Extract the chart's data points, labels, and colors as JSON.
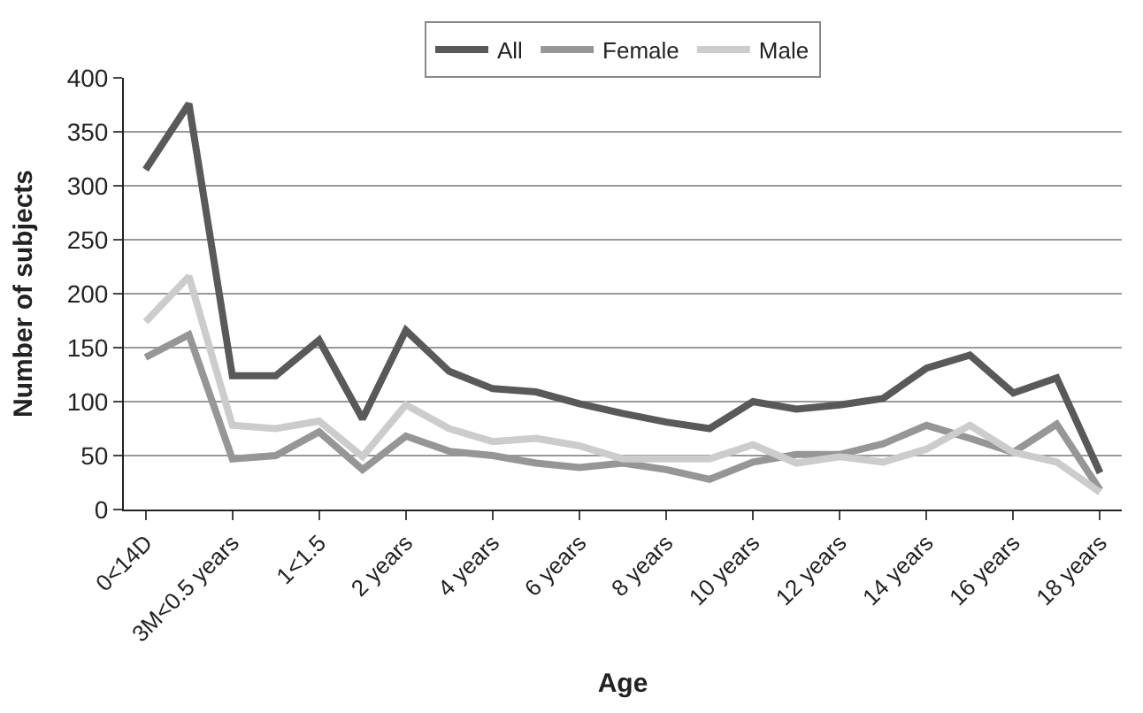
{
  "chart_data": {
    "type": "line",
    "xlabel": "Age",
    "ylabel": "Number of subjects",
    "categories": [
      "0<14D",
      null,
      "3M<0.5 years",
      null,
      "1<1.5",
      null,
      "2 years",
      null,
      "4 years",
      null,
      "6 years",
      null,
      "8 years",
      null,
      "10 years",
      null,
      "12 years",
      null,
      "14 years",
      null,
      "16 years",
      null,
      "18 years"
    ],
    "series": [
      {
        "name": "All",
        "color": "#595959",
        "values": [
          315,
          376,
          124,
          124,
          157,
          84,
          166,
          128,
          112,
          109,
          98,
          89,
          81,
          75,
          100,
          93,
          97,
          103,
          131,
          143,
          108,
          122,
          34
        ]
      },
      {
        "name": "Female",
        "color": "#969696",
        "values": [
          141,
          162,
          47,
          50,
          72,
          37,
          68,
          54,
          50,
          43,
          39,
          43,
          37,
          28,
          44,
          51,
          51,
          61,
          78,
          66,
          53,
          79,
          18
        ]
      },
      {
        "name": "Male",
        "color": "#cccccc",
        "values": [
          174,
          216,
          78,
          75,
          82,
          49,
          97,
          75,
          63,
          66,
          59,
          47,
          47,
          47,
          60,
          43,
          49,
          44,
          56,
          78,
          53,
          44,
          16
        ]
      }
    ],
    "ylim": [
      0,
      400
    ],
    "yticks": [
      0,
      50,
      100,
      150,
      200,
      250,
      300,
      350,
      400
    ],
    "grid": "y",
    "legend": "top",
    "marker": "none",
    "line_style": "solid"
  }
}
